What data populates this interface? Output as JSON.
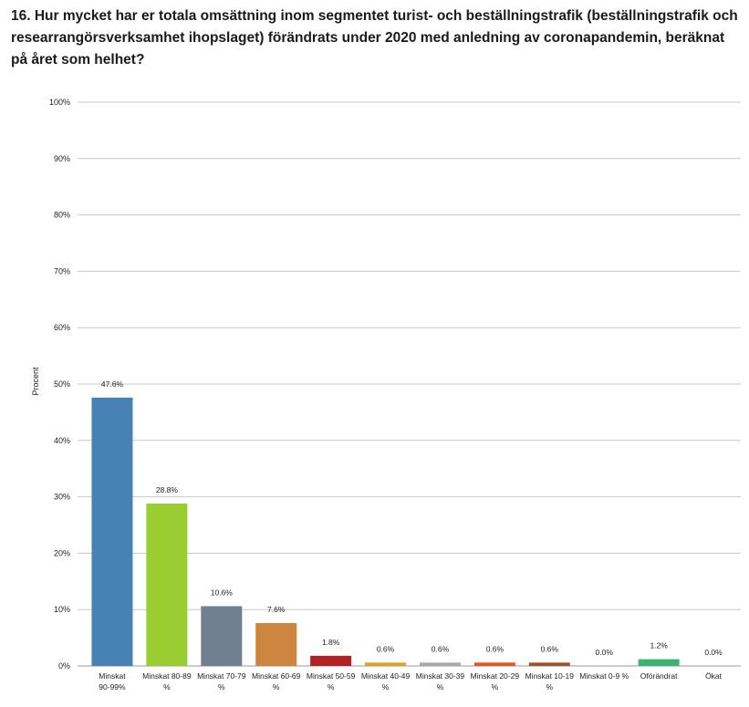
{
  "chart_data": {
    "type": "bar",
    "title": "16. Hur mycket har er totala omsättning inom segmentet turist- och beställningstrafik (beställningstrafik och researrangörsverksamhet ihopslaget) förändrats under 2020 med anledning av coronapandemin, beräknat på året som helhet?",
    "ylabel": "Procent",
    "xlabel": "",
    "ylim": [
      0,
      100
    ],
    "y_ticks": [
      "0%",
      "10%",
      "20%",
      "30%",
      "40%",
      "50%",
      "60%",
      "70%",
      "80%",
      "90%",
      "100%"
    ],
    "grid": true,
    "categories": [
      [
        "Minskat",
        "90-99%"
      ],
      [
        "Minskat 80-89",
        "%"
      ],
      [
        "Minskat 70-79",
        "%"
      ],
      [
        "Minskat 60-69",
        "%"
      ],
      [
        "Minskat 50-59",
        "%"
      ],
      [
        "Minskat 40-49",
        "%"
      ],
      [
        "Minskat 30-39",
        "%"
      ],
      [
        "Minskat 20-29",
        "%"
      ],
      [
        "Minskat 10-19",
        "%"
      ],
      [
        "Minskat 0-9 %"
      ],
      [
        "Oförändrat"
      ],
      [
        "Ökat"
      ]
    ],
    "values": [
      47.6,
      28.8,
      10.6,
      7.6,
      1.8,
      0.6,
      0.6,
      0.6,
      0.6,
      0.0,
      1.2,
      0.0
    ],
    "value_labels": [
      "47.6%",
      "28.8%",
      "10.6%",
      "7.6%",
      "1.8%",
      "0.6%",
      "0.6%",
      "0.6%",
      "0.6%",
      "0.0%",
      "1.2%",
      "0.0%"
    ],
    "colors": [
      "#4682b4",
      "#9acd32",
      "#708090",
      "#cd853f",
      "#b22222",
      "#daa520",
      "#a9a9a9",
      "#e2561f",
      "#a0522d",
      "#8a8a8a",
      "#3cb371",
      "#6a5acd"
    ]
  }
}
